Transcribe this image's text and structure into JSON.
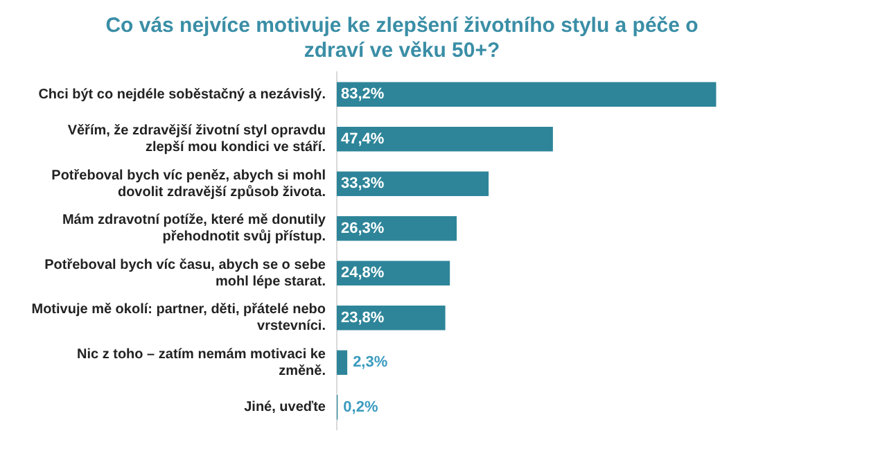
{
  "chart_data": {
    "type": "bar",
    "orientation": "horizontal",
    "title": "Co vás nejvíce motivuje ke zlepšení životního stylu a péče o zdraví ve věku 50+?",
    "color": "#2e8599",
    "categories": [
      "Chci být co nejdéle soběstačný a nezávislý.",
      "Věřím, že zdravější životní styl opravdu zlepší mou kondici ve stáří.",
      "Potřeboval bych víc peněz, abych si mohl dovolit zdravější způsob života.",
      "Mám zdravotní potíže, které mě donutily přehodnotit svůj přístup.",
      "Potřeboval bych víc času, abych se o sebe mohl lépe starat.",
      "Motivuje mě okolí: partner, děti, přátelé nebo vrstevníci.",
      "Nic z toho – zatím nemám motivaci ke změně.",
      "Jiné, uveďte"
    ],
    "values": [
      83.2,
      47.4,
      33.3,
      26.3,
      24.8,
      23.8,
      2.3,
      0.2
    ],
    "value_labels": [
      "83,2%",
      "47,4%",
      "33,3%",
      "26,3%",
      "24,8%",
      "23,8%",
      "2,3%",
      "0,2%"
    ],
    "grid": false,
    "legend": false,
    "tick_labels": "y"
  }
}
